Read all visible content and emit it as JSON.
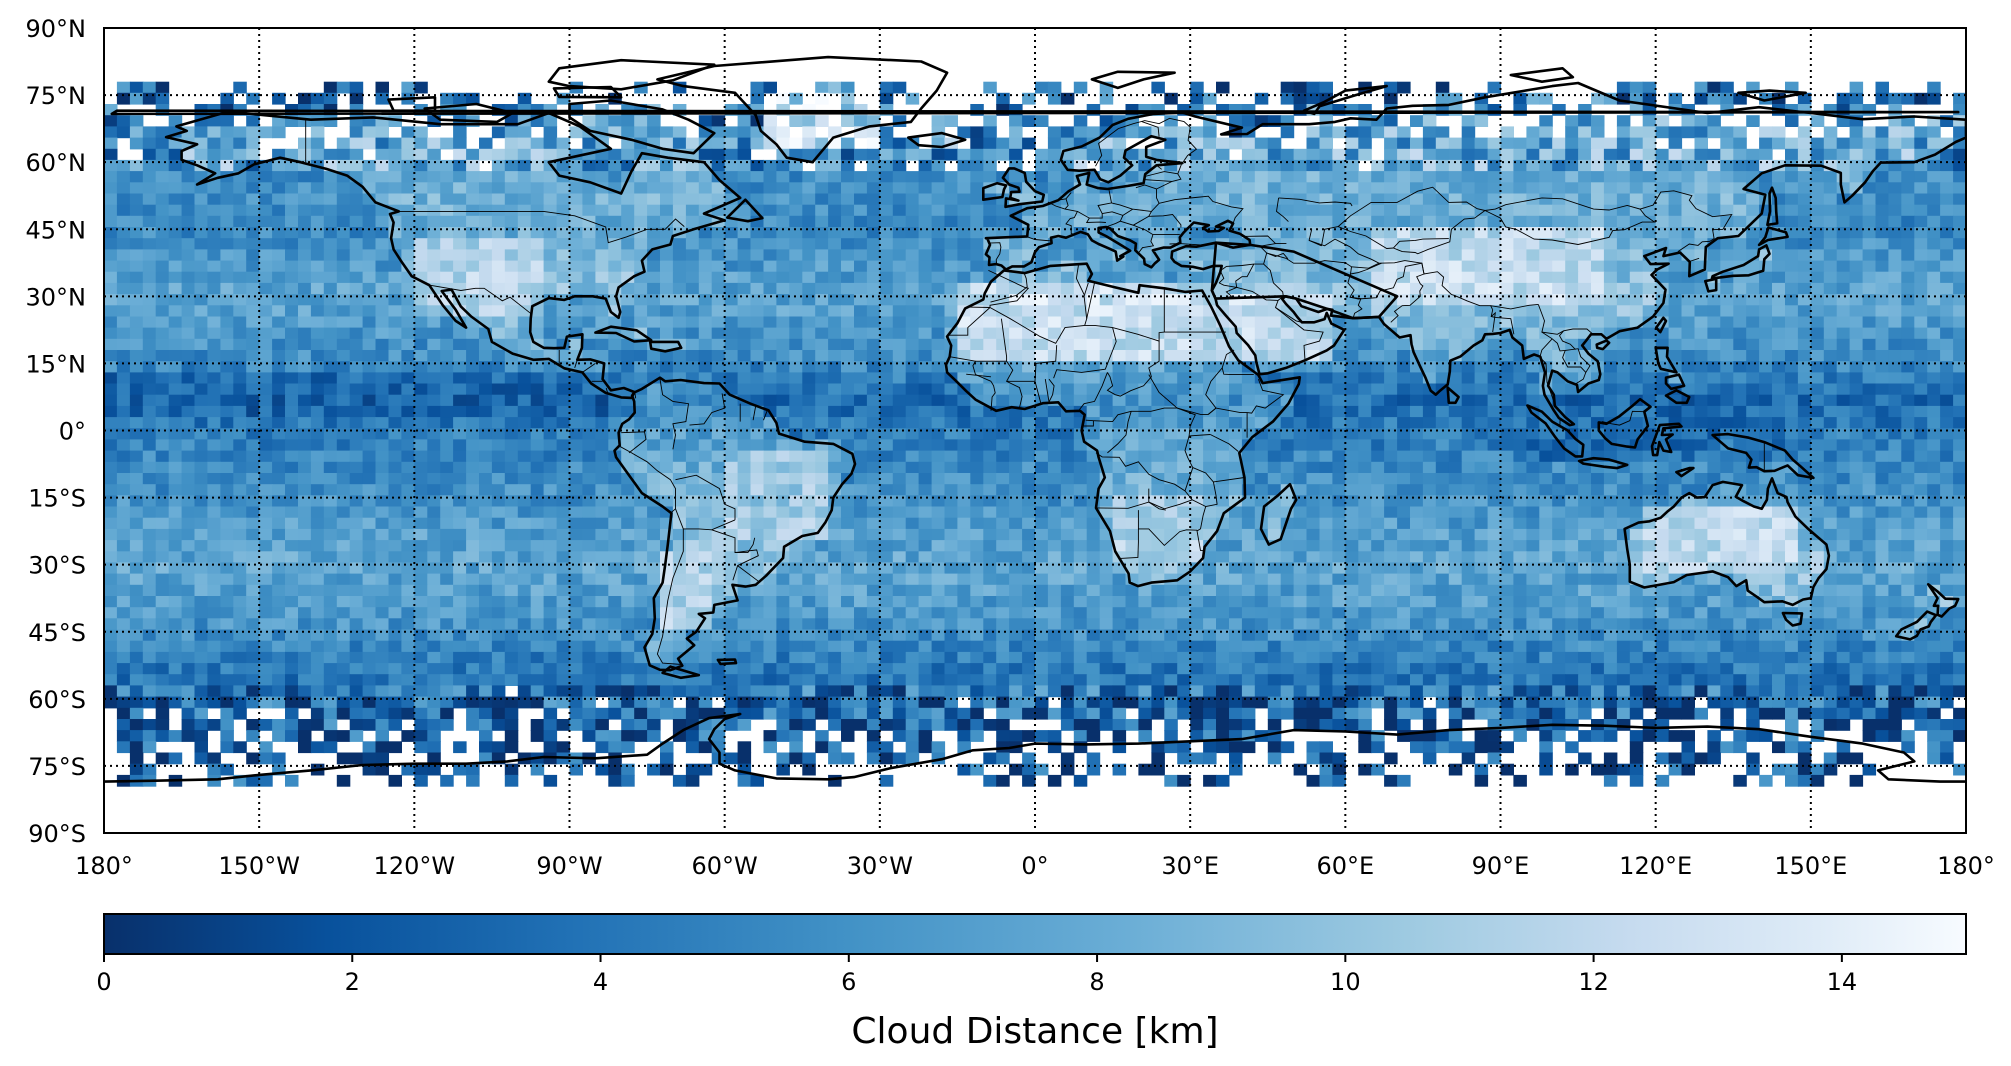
{
  "map": {
    "projection": "equirectangular",
    "lon_range": [
      -180,
      180
    ],
    "lat_range": [
      -90,
      90
    ],
    "gridlines": "dotted",
    "lon_gridlines": [
      -150,
      -120,
      -90,
      -60,
      -30,
      0,
      30,
      60,
      90,
      120,
      150
    ],
    "lat_gridlines": [
      -75,
      -60,
      -45,
      -30,
      -15,
      0,
      15,
      30,
      45,
      60,
      75
    ],
    "lon_tick_labels": [
      {
        "lon": -180,
        "label": "180°"
      },
      {
        "lon": -150,
        "label": "150°W"
      },
      {
        "lon": -120,
        "label": "120°W"
      },
      {
        "lon": -90,
        "label": "90°W"
      },
      {
        "lon": -60,
        "label": "60°W"
      },
      {
        "lon": -30,
        "label": "30°W"
      },
      {
        "lon": 0,
        "label": "0°"
      },
      {
        "lon": 30,
        "label": "30°E"
      },
      {
        "lon": 60,
        "label": "60°E"
      },
      {
        "lon": 90,
        "label": "90°E"
      },
      {
        "lon": 120,
        "label": "120°E"
      },
      {
        "lon": 150,
        "label": "150°E"
      },
      {
        "lon": 180,
        "label": "180°"
      }
    ],
    "lat_tick_labels": [
      {
        "lat": 90,
        "label": "90°N"
      },
      {
        "lat": 75,
        "label": "75°N"
      },
      {
        "lat": 60,
        "label": "60°N"
      },
      {
        "lat": 45,
        "label": "45°N"
      },
      {
        "lat": 30,
        "label": "30°N"
      },
      {
        "lat": 15,
        "label": "15°N"
      },
      {
        "lat": 0,
        "label": "0°"
      },
      {
        "lat": -15,
        "label": "15°S"
      },
      {
        "lat": -30,
        "label": "30°S"
      },
      {
        "lat": -45,
        "label": "45°S"
      },
      {
        "lat": -60,
        "label": "60°S"
      },
      {
        "lat": -75,
        "label": "75°S"
      },
      {
        "lat": -90,
        "label": "90°S"
      }
    ],
    "layers": [
      "gridded cloud distance field",
      "coastlines",
      "country borders"
    ]
  },
  "chart_data": {
    "type": "heatmap",
    "variable": "Cloud Distance",
    "units": "km",
    "value_range": [
      0,
      15
    ],
    "colormap": "Blues_r",
    "colors": {
      "low": "#08306b",
      "mid": "#4292c6",
      "high": "#f7fbff",
      "no_data": "#ffffff"
    },
    "zonal_mean_profile": [
      {
        "lat": 75,
        "value": 3.0
      },
      {
        "lat": 67.5,
        "value": 5.0
      },
      {
        "lat": 60,
        "value": 5.5
      },
      {
        "lat": 52.5,
        "value": 6.0
      },
      {
        "lat": 45,
        "value": 5.5
      },
      {
        "lat": 37.5,
        "value": 6.5
      },
      {
        "lat": 30,
        "value": 7.5
      },
      {
        "lat": 22.5,
        "value": 6.5
      },
      {
        "lat": 15,
        "value": 5.5
      },
      {
        "lat": 7.5,
        "value": 3.5
      },
      {
        "lat": 0,
        "value": 4.5
      },
      {
        "lat": -7.5,
        "value": 5.5
      },
      {
        "lat": -15,
        "value": 6.0
      },
      {
        "lat": -22.5,
        "value": 7.0
      },
      {
        "lat": -30,
        "value": 7.5
      },
      {
        "lat": -37.5,
        "value": 7.0
      },
      {
        "lat": -45,
        "value": 6.0
      },
      {
        "lat": -52.5,
        "value": 4.5
      },
      {
        "lat": -60,
        "value": 3.5
      },
      {
        "lat": -67.5,
        "value": 2.5
      },
      {
        "lat": -75,
        "value": 2.0
      }
    ],
    "data_coverage_lat": [
      -78,
      78
    ],
    "regional_features": [
      {
        "name": "Sahara",
        "lon": [
          -15,
          35
        ],
        "lat": [
          15,
          32
        ],
        "value": 14
      },
      {
        "name": "Arabia",
        "lon": [
          36,
          58
        ],
        "lat": [
          15,
          30
        ],
        "value": 13.5
      },
      {
        "name": "Tibet and Central Asia",
        "lon": [
          65,
          110
        ],
        "lat": [
          28,
          45
        ],
        "value": 13.5
      },
      {
        "name": "Australian interior",
        "lon": [
          118,
          148
        ],
        "lat": [
          -32,
          -18
        ],
        "value": 13
      },
      {
        "name": "Southwestern North America",
        "lon": [
          -120,
          -95
        ],
        "lat": [
          25,
          42
        ],
        "value": 12.5
      },
      {
        "name": "Southern Africa",
        "lon": [
          15,
          32
        ],
        "lat": [
          -30,
          -15
        ],
        "value": 12
      },
      {
        "name": "Eastern South America",
        "lon": [
          -60,
          -40
        ],
        "lat": [
          -25,
          -5
        ],
        "value": 11.5
      },
      {
        "name": "Patagonia",
        "lon": [
          -72,
          -62
        ],
        "lat": [
          -45,
          -28
        ],
        "value": 12.5
      },
      {
        "name": "Greenland interior",
        "lon": [
          -52,
          -30
        ],
        "lat": [
          62,
          75
        ],
        "value": 14.5
      },
      {
        "name": "ITCZ Pacific",
        "lon": [
          -180,
          -80
        ],
        "lat": [
          3,
          12
        ],
        "value": 2.5
      },
      {
        "name": "Maritime Continent",
        "lon": [
          95,
          145
        ],
        "lat": [
          -8,
          8
        ],
        "value": 3.0
      }
    ],
    "colorbar": {
      "orientation": "horizontal",
      "min": 0,
      "max": 15,
      "ticks": [
        {
          "value": 0,
          "label": "0"
        },
        {
          "value": 2,
          "label": "2"
        },
        {
          "value": 4,
          "label": "4"
        },
        {
          "value": 6,
          "label": "6"
        },
        {
          "value": 8,
          "label": "8"
        },
        {
          "value": 10,
          "label": "10"
        },
        {
          "value": 12,
          "label": "12"
        },
        {
          "value": 14,
          "label": "14"
        }
      ],
      "label": "Cloud Distance [km]"
    }
  }
}
